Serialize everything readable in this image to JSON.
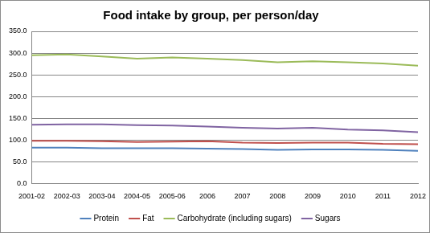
{
  "chart_data": {
    "type": "line",
    "title": "Food intake by group, per person/day",
    "categories": [
      "2001-02",
      "2002-03",
      "2003-04",
      "2004-05",
      "2005-06",
      "2006",
      "2007",
      "2008",
      "2009",
      "2010",
      "2011",
      "2012"
    ],
    "series": [
      {
        "name": "Protein",
        "color": "#4f81bd",
        "values": [
          82,
          82,
          81,
          81,
          81,
          80,
          79,
          77,
          78,
          78,
          77,
          75
        ]
      },
      {
        "name": "Fat",
        "color": "#c0504d",
        "values": [
          98,
          98,
          97,
          95,
          96,
          97,
          94,
          93,
          94,
          94,
          91,
          90
        ]
      },
      {
        "name": "Carbohydrate (including sugars)",
        "color": "#9bbb59",
        "values": [
          295,
          297,
          292,
          287,
          290,
          287,
          284,
          279,
          281,
          279,
          276,
          271
        ]
      },
      {
        "name": "Sugars",
        "color": "#8064a2",
        "values": [
          135,
          136,
          136,
          134,
          133,
          131,
          128,
          126,
          128,
          124,
          122,
          118
        ]
      }
    ],
    "ylim": [
      0,
      350
    ],
    "yticks": [
      {
        "value": 0,
        "label": "0.0"
      },
      {
        "value": 50,
        "label": "50.0"
      },
      {
        "value": 100,
        "label": "100.0"
      },
      {
        "value": 150,
        "label": "150.0"
      },
      {
        "value": 200,
        "label": "200.0"
      },
      {
        "value": 250,
        "label": "250.0"
      },
      {
        "value": 300,
        "label": "300.0"
      },
      {
        "value": 350,
        "label": "350.0"
      }
    ],
    "grid": true,
    "legend": "bottom",
    "marker": "none",
    "line_style": "solid"
  }
}
